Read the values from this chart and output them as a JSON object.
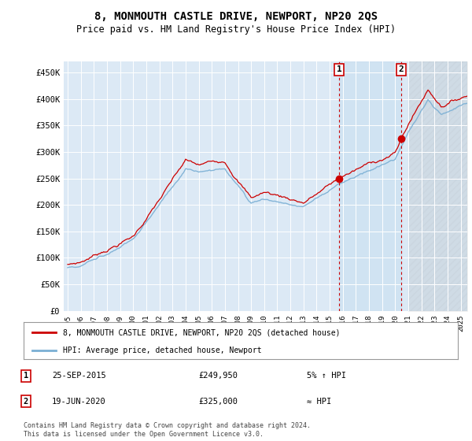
{
  "title": "8, MONMOUTH CASTLE DRIVE, NEWPORT, NP20 2QS",
  "subtitle": "Price paid vs. HM Land Registry's House Price Index (HPI)",
  "ylabel_ticks": [
    "£0",
    "£50K",
    "£100K",
    "£150K",
    "£200K",
    "£250K",
    "£300K",
    "£350K",
    "£400K",
    "£450K"
  ],
  "ytick_vals": [
    0,
    50000,
    100000,
    150000,
    200000,
    250000,
    300000,
    350000,
    400000,
    450000
  ],
  "ylim": [
    0,
    470000
  ],
  "xlim_start": 1994.7,
  "xlim_end": 2025.5,
  "background_color": "#dce9f5",
  "grid_color": "#ffffff",
  "hpi_line_color": "#7aafd4",
  "price_line_color": "#cc0000",
  "highlight_color": "#d6e8f5",
  "sale1_x": 2015.73,
  "sale1_y": 249950,
  "sale2_x": 2020.47,
  "sale2_y": 325000,
  "sale1_label": "1",
  "sale2_label": "2",
  "sale1_date": "25-SEP-2015",
  "sale1_price": "£249,950",
  "sale1_hpi": "5% ↑ HPI",
  "sale2_date": "19-JUN-2020",
  "sale2_price": "£325,000",
  "sale2_hpi": "≈ HPI",
  "legend_line1": "8, MONMOUTH CASTLE DRIVE, NEWPORT, NP20 2QS (detached house)",
  "legend_line2": "HPI: Average price, detached house, Newport",
  "footer": "Contains HM Land Registry data © Crown copyright and database right 2024.\nThis data is licensed under the Open Government Licence v3.0.",
  "xtick_years": [
    1995,
    1996,
    1997,
    1998,
    1999,
    2000,
    2001,
    2002,
    2003,
    2004,
    2005,
    2006,
    2007,
    2008,
    2009,
    2010,
    2011,
    2012,
    2013,
    2014,
    2015,
    2016,
    2017,
    2018,
    2019,
    2020,
    2021,
    2022,
    2023,
    2024,
    2025
  ]
}
